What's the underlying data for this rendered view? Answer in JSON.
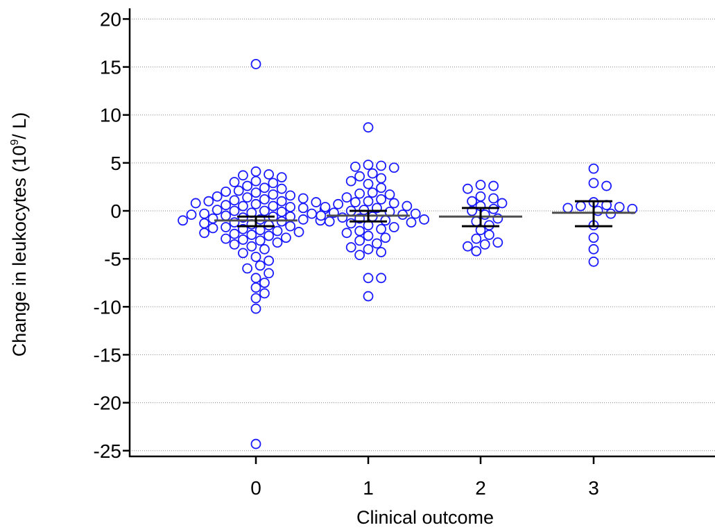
{
  "chart_data": {
    "type": "scatter",
    "subtype": "dot-plot",
    "title": "",
    "xlabel": "Clinical outcome",
    "ylabel_main": "Change in leukocytes (10",
    "ylabel_sup": "9",
    "ylabel_end": "/ L)",
    "ylim": [
      -26,
      21
    ],
    "yticks": [
      20,
      15,
      10,
      5,
      0,
      -5,
      -10,
      -15,
      -20,
      -25
    ],
    "ytick_labels": [
      "20",
      "15",
      "10",
      "5",
      "0",
      "-5",
      "-10",
      "-15",
      "-20",
      "-25"
    ],
    "grid": "horizontal dotted",
    "categories": [
      "0",
      "1",
      "2",
      "3"
    ],
    "point_color": "#1a1aff",
    "median_color": "#4d4d4d",
    "ci_color": "#000000",
    "groups": [
      {
        "category": "0",
        "median": -1.0,
        "ci": [
          -1.6,
          -0.6
        ],
        "values": [
          15.3,
          4.1,
          3.8,
          3.7,
          3.5,
          3.1,
          3.0,
          2.9,
          2.6,
          2.4,
          2.3,
          2.1,
          2.0,
          1.9,
          1.7,
          1.6,
          1.5,
          1.4,
          1.3,
          1.2,
          1.1,
          1.0,
          1.0,
          0.9,
          0.8,
          0.7,
          0.6,
          0.5,
          0.5,
          0.4,
          0.3,
          0.2,
          0.1,
          0.0,
          0.0,
          -0.1,
          -0.2,
          -0.3,
          -0.3,
          -0.4,
          -0.5,
          -0.6,
          -0.6,
          -0.7,
          -0.8,
          -0.9,
          -0.9,
          -1.0,
          -1.0,
          -1.1,
          -1.2,
          -1.3,
          -1.4,
          -1.5,
          -1.6,
          -1.7,
          -1.8,
          -1.9,
          -2.0,
          -2.1,
          -2.2,
          -2.3,
          -2.4,
          -2.5,
          -2.6,
          -2.8,
          -2.9,
          -3.0,
          -3.1,
          -3.3,
          -3.5,
          -3.7,
          -4.0,
          -4.4,
          -4.8,
          -5.2,
          -5.7,
          -6.0,
          -6.5,
          -7.0,
          -7.5,
          -8.0,
          -8.6,
          -9.1,
          -10.2,
          -24.3
        ]
      },
      {
        "category": "1",
        "median": -0.5,
        "ci": [
          -1.1,
          0.0
        ],
        "values": [
          8.7,
          4.8,
          4.7,
          4.6,
          4.5,
          3.9,
          3.6,
          3.4,
          3.1,
          2.8,
          2.4,
          1.9,
          1.8,
          1.7,
          1.4,
          1.2,
          1.0,
          0.9,
          0.8,
          0.7,
          0.5,
          0.4,
          0.3,
          0.1,
          0.0,
          -0.1,
          -0.2,
          -0.3,
          -0.4,
          -0.5,
          -0.6,
          -0.7,
          -0.8,
          -0.9,
          -1.0,
          -1.1,
          -1.2,
          -1.3,
          -1.5,
          -1.7,
          -1.9,
          -2.1,
          -2.3,
          -2.6,
          -2.8,
          -3.1,
          -3.4,
          -3.8,
          -4.0,
          -4.3,
          -4.6,
          -7.0,
          -7.0,
          -8.9
        ]
      },
      {
        "category": "2",
        "median": -0.6,
        "ci": [
          -1.6,
          0.3
        ],
        "values": [
          2.7,
          2.6,
          2.3,
          1.5,
          1.3,
          1.0,
          0.8,
          0.5,
          0.2,
          0.0,
          -0.4,
          -0.8,
          -1.1,
          -1.5,
          -2.0,
          -2.5,
          -2.9,
          -3.3,
          -3.5,
          -3.7,
          -4.2
        ]
      },
      {
        "category": "3",
        "median": -0.2,
        "ci": [
          -1.6,
          1.0
        ],
        "values": [
          4.4,
          2.9,
          2.6,
          0.9,
          0.6,
          0.5,
          0.4,
          0.3,
          0.2,
          0.0,
          -0.3,
          -1.5,
          -2.8,
          -4.0,
          -5.3
        ]
      }
    ]
  }
}
